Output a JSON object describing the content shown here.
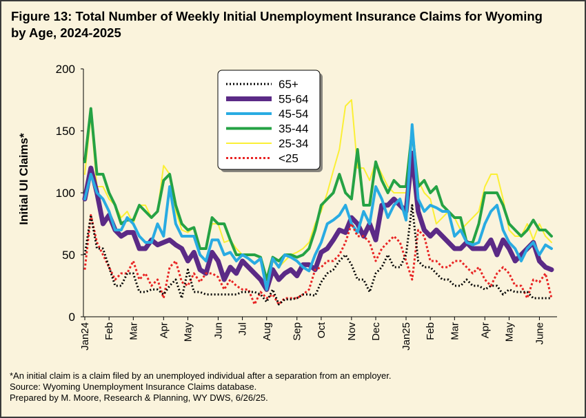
{
  "figure": {
    "title_line1": "Figure 13: Total Number of Weekly Initial Unemployment Insurance Claims for Wyoming",
    "title_line2": "by Age, 2024-2025",
    "note": "*An initial claim is a claim filed by an unemployed individual after a separation from an employer.",
    "source": "Source: Wyoming Unemployment Insurance Claims database.",
    "credit": "Prepared by M. Moore, Research & Planning, WY DWS, 6/26/25."
  },
  "chart_data": {
    "type": "line",
    "ylabel": "Initial UI Claims*",
    "ylim": [
      0,
      200
    ],
    "yticks": [
      0,
      50,
      100,
      150,
      200
    ],
    "x_weeks_count": 78,
    "xtick_labels": [
      "Jan24",
      "Feb",
      "Mar",
      "Apr",
      "May",
      "Jun",
      "Jul",
      "Aug",
      "Sep",
      "Oct",
      "Nov",
      "Dec",
      "Jan25",
      "Feb",
      "Mar",
      "Apr",
      "May",
      "June"
    ],
    "xtick_week_index": [
      0,
      4,
      8,
      13,
      17,
      22,
      26,
      30,
      35,
      39,
      44,
      48,
      53,
      57,
      61,
      66,
      70,
      75
    ],
    "legend_position": "top-center",
    "series": [
      {
        "name": "65+",
        "color": "#000000",
        "width": 3,
        "dash": "2 3",
        "draw_order": 6,
        "values": [
          50,
          82,
          55,
          55,
          40,
          25,
          25,
          35,
          35,
          20,
          20,
          22,
          22,
          18,
          25,
          30,
          15,
          38,
          20,
          20,
          18,
          18,
          18,
          18,
          18,
          18,
          20,
          20,
          20,
          18,
          12,
          22,
          10,
          14,
          14,
          15,
          18,
          18,
          17,
          28,
          35,
          38,
          45,
          50,
          42,
          30,
          30,
          20,
          35,
          40,
          50,
          40,
          40,
          50,
          90,
          45,
          40,
          40,
          35,
          30,
          30,
          25,
          25,
          30,
          25,
          25,
          22,
          25,
          25,
          18,
          22,
          20,
          20,
          20,
          15,
          15,
          15,
          15
        ]
      },
      {
        "name": "55-64",
        "color": "#5b2a86",
        "width": 7,
        "dash": "",
        "draw_order": 3,
        "values": [
          95,
          120,
          100,
          75,
          82,
          70,
          65,
          68,
          68,
          55,
          55,
          62,
          58,
          60,
          62,
          58,
          55,
          45,
          52,
          38,
          35,
          52,
          45,
          30,
          40,
          35,
          45,
          40,
          35,
          30,
          22,
          38,
          30,
          35,
          38,
          33,
          42,
          42,
          38,
          52,
          55,
          62,
          70,
          68,
          80,
          75,
          65,
          75,
          62,
          90,
          90,
          95,
          90,
          85,
          132,
          85,
          70,
          65,
          70,
          65,
          60,
          55,
          55,
          60,
          55,
          55,
          55,
          62,
          50,
          62,
          55,
          45,
          50,
          55,
          60,
          45,
          40,
          38
        ]
      },
      {
        "name": "45-54",
        "color": "#29abe2",
        "width": 4,
        "dash": "",
        "draw_order": 4,
        "values": [
          95,
          115,
          100,
          95,
          85,
          70,
          70,
          80,
          75,
          65,
          60,
          60,
          75,
          65,
          105,
          75,
          65,
          65,
          65,
          50,
          45,
          62,
          62,
          50,
          52,
          45,
          50,
          47,
          43,
          47,
          22,
          47,
          40,
          50,
          48,
          45,
          40,
          37,
          50,
          60,
          75,
          78,
          82,
          90,
          75,
          68,
          85,
          75,
          105,
          95,
          80,
          90,
          95,
          78,
          155,
          95,
          85,
          90,
          88,
          85,
          85,
          65,
          70,
          60,
          58,
          60,
          75,
          85,
          90,
          70,
          60,
          55,
          45,
          55,
          60,
          50,
          58,
          55
        ]
      },
      {
        "name": "35-44",
        "color": "#25a244",
        "width": 4,
        "dash": "",
        "draw_order": 2,
        "values": [
          125,
          168,
          115,
          115,
          100,
          90,
          75,
          78,
          78,
          90,
          85,
          80,
          85,
          110,
          115,
          90,
          75,
          70,
          72,
          55,
          55,
          80,
          75,
          75,
          62,
          50,
          50,
          50,
          50,
          48,
          30,
          48,
          45,
          50,
          50,
          48,
          50,
          55,
          70,
          90,
          95,
          100,
          115,
          100,
          95,
          135,
          90,
          90,
          125,
          110,
          100,
          110,
          105,
          105,
          150,
          105,
          110,
          100,
          105,
          90,
          85,
          80,
          80,
          60,
          60,
          75,
          100,
          100,
          100,
          90,
          75,
          70,
          65,
          70,
          78,
          70,
          70,
          65
        ]
      },
      {
        "name": "25-34",
        "color": "#fbef35",
        "width": 2,
        "dash": "",
        "draw_order": 1,
        "values": [
          115,
          162,
          105,
          105,
          95,
          90,
          80,
          85,
          75,
          90,
          90,
          80,
          85,
          122,
          115,
          85,
          70,
          68,
          72,
          55,
          55,
          75,
          75,
          60,
          62,
          55,
          50,
          50,
          50,
          48,
          22,
          45,
          40,
          45,
          50,
          52,
          55,
          60,
          75,
          85,
          100,
          118,
          135,
          170,
          175,
          120,
          120,
          110,
          125,
          115,
          105,
          100,
          100,
          100,
          145,
          110,
          100,
          95,
          75,
          80,
          85,
          80,
          70,
          75,
          80,
          85,
          105,
          115,
          115,
          95,
          70,
          65,
          65,
          75,
          62,
          75,
          65,
          60
        ]
      },
      {
        "name": "<25",
        "color": "#e82424",
        "width": 3,
        "dash": "3 3",
        "draw_order": 5,
        "values": [
          38,
          82,
          60,
          50,
          40,
          30,
          35,
          35,
          45,
          30,
          35,
          25,
          30,
          15,
          40,
          45,
          28,
          25,
          35,
          28,
          35,
          35,
          32,
          22,
          30,
          25,
          22,
          22,
          10,
          20,
          15,
          18,
          10,
          15,
          15,
          15,
          18,
          22,
          38,
          40,
          45,
          45,
          50,
          60,
          75,
          65,
          65,
          60,
          45,
          55,
          60,
          65,
          60,
          45,
          30,
          70,
          65,
          45,
          45,
          40,
          40,
          45,
          45,
          40,
          35,
          40,
          30,
          25,
          35,
          40,
          35,
          25,
          25,
          15,
          30,
          28,
          35,
          15
        ]
      }
    ]
  }
}
